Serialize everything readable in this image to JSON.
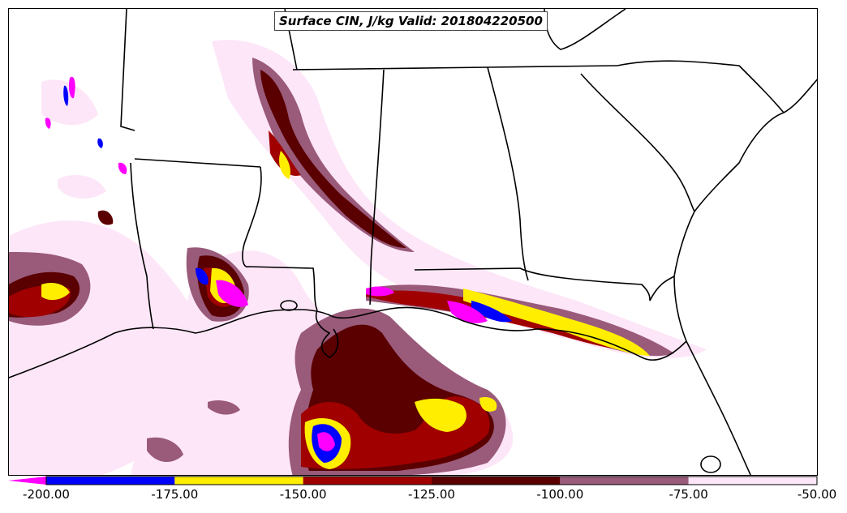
{
  "title": "Surface CIN, J/kg Valid: 201804220500",
  "colorbar": {
    "ticks": [
      "-200.00",
      "-175.00",
      "-150.00",
      "-125.00",
      "-100.00",
      "-75.00",
      "-50.00"
    ],
    "colors": [
      "#ff00ff",
      "#0000ff",
      "#ffee00",
      "#a00000",
      "#5a0000",
      "#9a5a7a",
      "#fde6f8"
    ],
    "segments": [
      {
        "from": -200,
        "to": -175,
        "color": "#0000ff"
      },
      {
        "from": -175,
        "to": -150,
        "color": "#ffee00"
      },
      {
        "from": -150,
        "to": -125,
        "color": "#a00000"
      },
      {
        "from": -125,
        "to": -100,
        "color": "#5a0000"
      },
      {
        "from": -100,
        "to": -75,
        "color": "#9a5a7a"
      },
      {
        "from": -75,
        "to": -50,
        "color": "#fde6f8"
      }
    ],
    "extend_min_color": "#ff00ff"
  }
}
